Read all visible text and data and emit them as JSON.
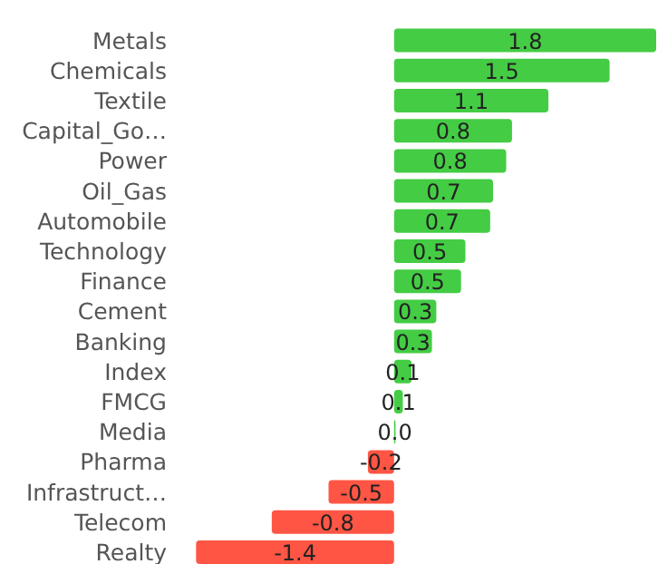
{
  "chart_data": {
    "type": "bar",
    "orientation": "horizontal",
    "categories": [
      "Metals",
      "Chemicals",
      "Textile",
      "Capital_Go…",
      "Power",
      "Oil_Gas",
      "Automobile",
      "Technology",
      "Finance",
      "Cement",
      "Banking",
      "Index",
      "FMCG",
      "Media",
      "Pharma",
      "Infrastruct…",
      "Telecom",
      "Realty"
    ],
    "values": [
      1.8,
      1.48,
      1.06,
      0.81,
      0.77,
      0.68,
      0.66,
      0.49,
      0.46,
      0.29,
      0.26,
      0.12,
      0.06,
      0.01,
      -0.18,
      -0.45,
      -0.84,
      -1.36
    ],
    "value_labels": [
      "1.8",
      "1.5",
      "1.1",
      "0.8",
      "0.8",
      "0.7",
      "0.7",
      "0.5",
      "0.5",
      "0.3",
      "0.3",
      "0.1",
      "0.1",
      "0.0",
      "-0.2",
      "-0.5",
      "-0.8",
      "-1.4"
    ],
    "colors": [
      "#44cc44",
      "#44cc44",
      "#44cc44",
      "#44cc44",
      "#44cc44",
      "#44cc44",
      "#44cc44",
      "#44cc44",
      "#44cc44",
      "#44cc44",
      "#44cc44",
      "#44cc44",
      "#44cc44",
      "#44cc44",
      "#ff5544",
      "#ff5544",
      "#ff5544",
      "#ff5544"
    ]
  }
}
